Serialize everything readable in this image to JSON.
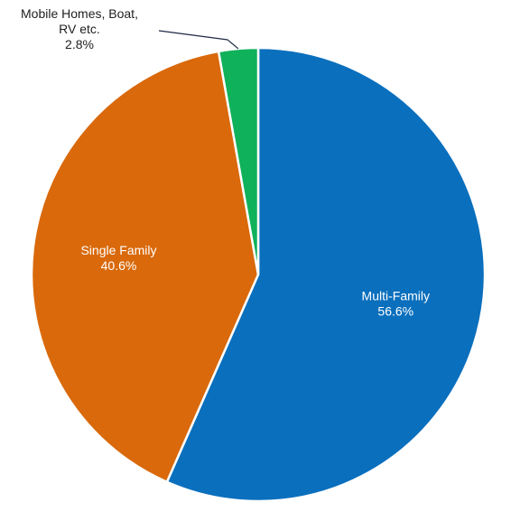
{
  "chart_data": {
    "type": "pie",
    "title": "",
    "start_angle_deg": 0,
    "direction": "clockwise",
    "slices": [
      {
        "label": "Multi-Family",
        "value": 56.6,
        "value_label": "56.6%",
        "color": "#0A6FBD",
        "label_position": "inside"
      },
      {
        "label": "Single Family",
        "value": 40.6,
        "value_label": "40.6%",
        "color": "#D9690B",
        "label_position": "inside"
      },
      {
        "label_lines": [
          "Mobile Homes, Boat,",
          "RV etc."
        ],
        "value": 2.8,
        "value_label": "2.8%",
        "color": "#0FB15A",
        "label_position": "outside-leader"
      }
    ]
  }
}
